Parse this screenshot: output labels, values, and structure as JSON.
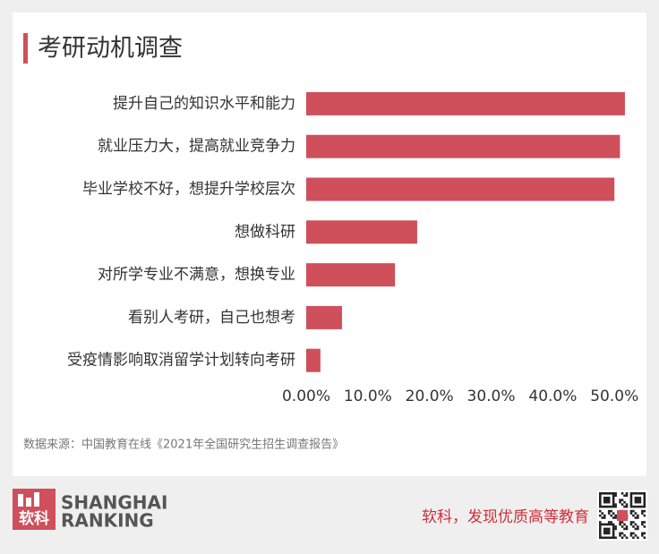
{
  "chart_data": {
    "type": "bar",
    "orientation": "horizontal",
    "title": "考研动机调查",
    "categories": [
      "提升自己的知识水平和能力",
      "就业压力大，提高就业竞争力",
      "毕业学校不好，想提升学校层次",
      "想做科研",
      "对所学专业不满意，想换专业",
      "看别人考研，自己也想考",
      "受疫情影响取消留学计划转向考研"
    ],
    "values": [
      51.7,
      50.9,
      50.0,
      18.0,
      14.4,
      5.8,
      2.3
    ],
    "color": "#cf4f5a",
    "xlim": [
      0,
      52
    ],
    "xticks": [
      {
        "value": 0,
        "label": "0.00%"
      },
      {
        "value": 10,
        "label": "10.0%"
      },
      {
        "value": 20,
        "label": "20.0%"
      },
      {
        "value": 30,
        "label": "30.0%"
      },
      {
        "value": 40,
        "label": "40.0%"
      },
      {
        "value": 50,
        "label": "50.0%"
      }
    ],
    "grid": false,
    "source": "数据来源：中国教育在线《2021年全国研究生招生调查报告》"
  },
  "footer": {
    "logo": "软科",
    "brand_line1": "SHANGHAI",
    "brand_line2": "RANKING",
    "slogan": "软科，发现优质高等教育"
  }
}
